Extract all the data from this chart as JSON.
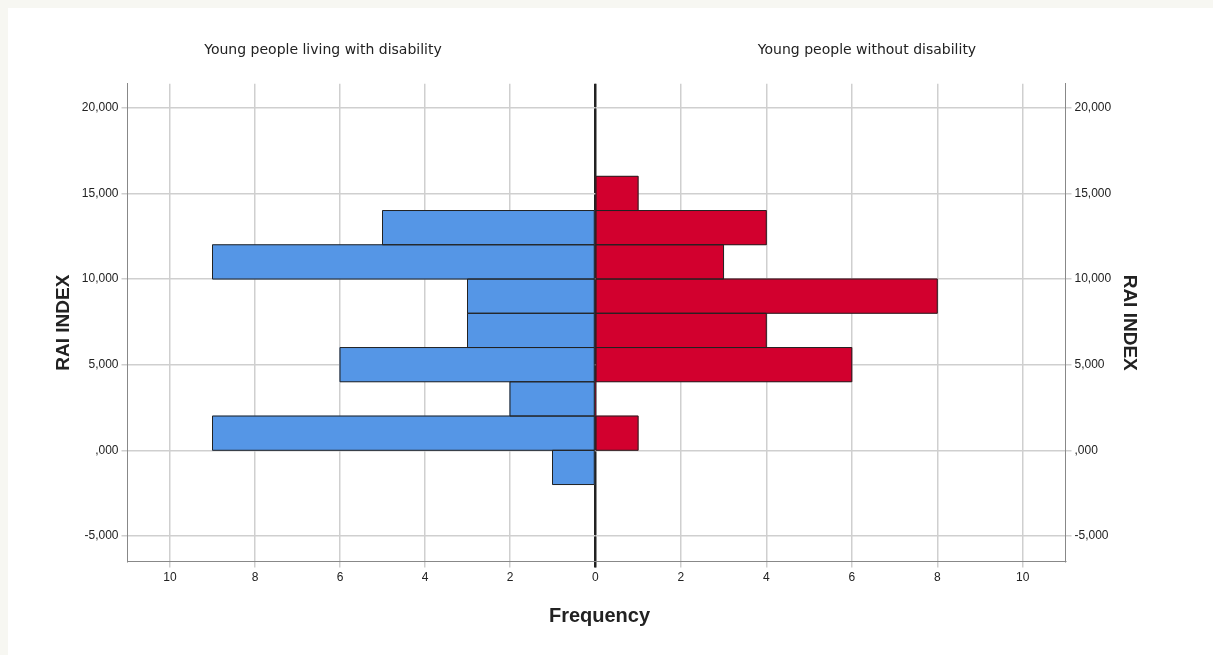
{
  "chart_data": [
    {
      "type": "histogram",
      "orientation": "horizontal",
      "title": "Young people living with disability",
      "ylabel": "RAI INDEX",
      "xlabel": "Frequency",
      "bins": [
        -2000,
        0,
        2000,
        4000,
        6000,
        8000,
        10000,
        12000,
        14000
      ],
      "values": [
        1,
        9,
        2,
        6,
        3,
        3,
        9,
        5
      ],
      "color": "#5596e6",
      "xlim": [
        11,
        0
      ],
      "xticks": [
        10,
        8,
        6,
        4,
        2,
        {
          "value": 0,
          "label": null
        }
      ],
      "ylim": [
        -6500,
        21400
      ],
      "yticks": [
        {
          "value": -5000,
          "label": "-5,000"
        },
        {
          "value": 0,
          "label": ",000"
        },
        {
          "value": 5000,
          "label": "5,000"
        },
        {
          "value": 10000,
          "label": "10,000"
        },
        {
          "value": 15000,
          "label": "15,000"
        },
        {
          "value": 20000,
          "label": "20,000"
        }
      ],
      "grid": true,
      "legend": false
    },
    {
      "type": "histogram",
      "orientation": "horizontal",
      "title": "Young people without disability",
      "ylabel": "RAI INDEX",
      "bins": [
        0,
        2000,
        4000,
        6000,
        8000,
        10000,
        12000,
        14000,
        16000
      ],
      "values": [
        1,
        0,
        6,
        4,
        8,
        3,
        4,
        1
      ],
      "color": "#d2002e",
      "xlim": [
        0,
        11
      ],
      "xticks": [
        0,
        2,
        4,
        6,
        8,
        10
      ],
      "ylim": [
        -6500,
        21400
      ],
      "yticks": [
        {
          "value": -5000,
          "label": "-5,000"
        },
        {
          "value": 0,
          "label": ",000"
        },
        {
          "value": 5000,
          "label": "5,000"
        },
        {
          "value": 10000,
          "label": "10,000"
        },
        {
          "value": 15000,
          "label": "15,000"
        },
        {
          "value": 20000,
          "label": "20,000"
        }
      ],
      "grid": true,
      "legend": false
    }
  ]
}
